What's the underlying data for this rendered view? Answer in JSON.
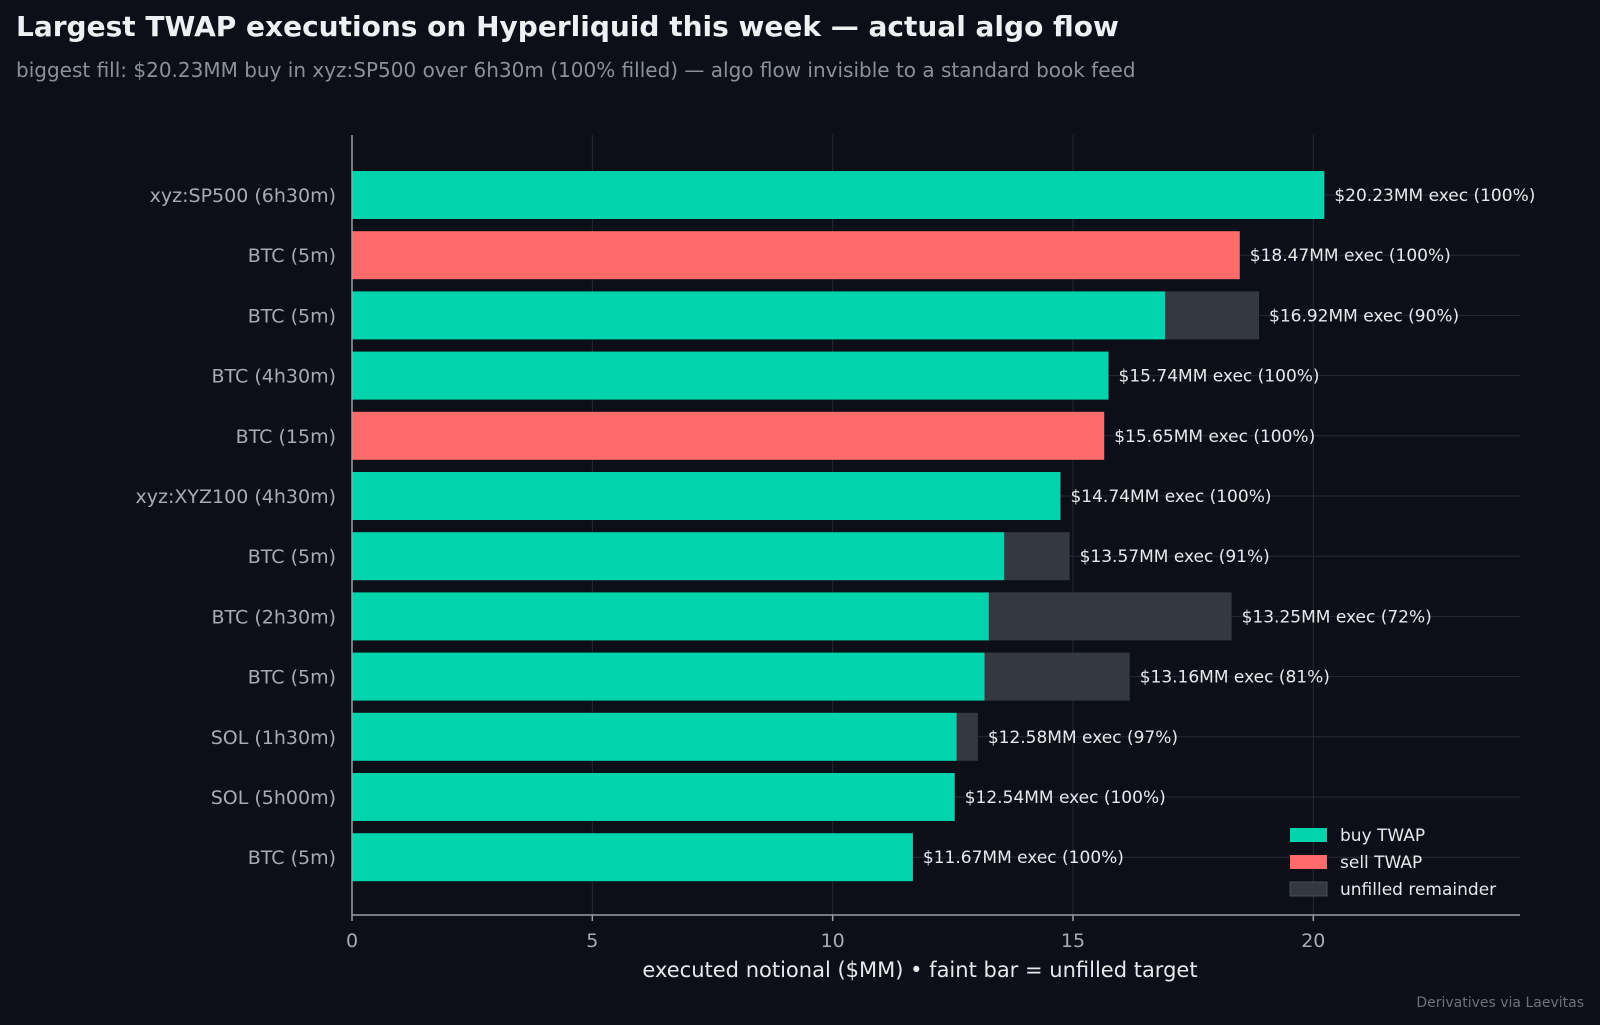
{
  "header": {
    "title": "Largest TWAP executions on Hyperliquid this week — actual algo flow",
    "subtitle": "biggest fill: $20.23MM buy in xyz:SP500 over 6h30m (100% filled) — algo flow invisible to a standard book feed"
  },
  "footer": {
    "credit": "Derivatives via Laevitas"
  },
  "colors": {
    "background": "#0c0f17",
    "buy": "#00d4ac",
    "sell": "#ff6b6b",
    "unfilled": "#343840",
    "grid": "#262a33",
    "axis": "#9a9ea6"
  },
  "chart_data": {
    "type": "bar",
    "orientation": "horizontal",
    "categories": [
      "xyz:SP500  (6h30m)",
      "BTC  (5m)",
      "BTC  (5m)",
      "BTC  (4h30m)",
      "BTC  (15m)",
      "xyz:XYZ100  (4h30m)",
      "BTC  (5m)",
      "BTC  (2h30m)",
      "BTC  (5m)",
      "SOL  (1h30m)",
      "SOL  (5h00m)",
      "BTC  (5m)"
    ],
    "series": [
      {
        "name": "buy TWAP",
        "role": "executed"
      },
      {
        "name": "sell TWAP",
        "role": "executed"
      },
      {
        "name": "unfilled remainder",
        "role": "remainder"
      }
    ],
    "bars": [
      {
        "side": "buy",
        "executed": 20.23,
        "target": 20.23,
        "label": "$20.23MM exec (100%)"
      },
      {
        "side": "sell",
        "executed": 18.47,
        "target": 18.47,
        "label": "$18.47MM exec (100%)"
      },
      {
        "side": "buy",
        "executed": 16.92,
        "target": 18.87,
        "label": "$16.92MM exec (90%)"
      },
      {
        "side": "buy",
        "executed": 15.74,
        "target": 15.74,
        "label": "$15.74MM exec (100%)"
      },
      {
        "side": "sell",
        "executed": 15.65,
        "target": 15.65,
        "label": "$15.65MM exec (100%)"
      },
      {
        "side": "buy",
        "executed": 14.74,
        "target": 14.74,
        "label": "$14.74MM exec (100%)"
      },
      {
        "side": "buy",
        "executed": 13.57,
        "target": 14.93,
        "label": "$13.57MM exec (91%)"
      },
      {
        "side": "buy",
        "executed": 13.25,
        "target": 18.3,
        "label": "$13.25MM exec (72%)"
      },
      {
        "side": "buy",
        "executed": 13.16,
        "target": 16.18,
        "label": "$13.16MM exec (81%)"
      },
      {
        "side": "buy",
        "executed": 12.58,
        "target": 13.02,
        "label": "$12.58MM exec (97%)"
      },
      {
        "side": "buy",
        "executed": 12.54,
        "target": 12.54,
        "label": "$12.54MM exec (100%)"
      },
      {
        "side": "buy",
        "executed": 11.67,
        "target": 11.67,
        "label": "$11.67MM exec (100%)"
      }
    ],
    "xlabel": "executed notional ($MM)  •  faint bar = unfilled target",
    "xlim": [
      0,
      24.3
    ],
    "xticks": [
      0,
      5,
      10,
      15,
      20
    ],
    "xtick_labels": [
      "0",
      "5",
      "10",
      "15",
      "20"
    ],
    "grid": true,
    "legend_position": "bottom-right",
    "legend": [
      {
        "key": "buy",
        "label": "buy TWAP"
      },
      {
        "key": "sell",
        "label": "sell TWAP"
      },
      {
        "key": "unfilled",
        "label": "unfilled remainder"
      }
    ]
  }
}
